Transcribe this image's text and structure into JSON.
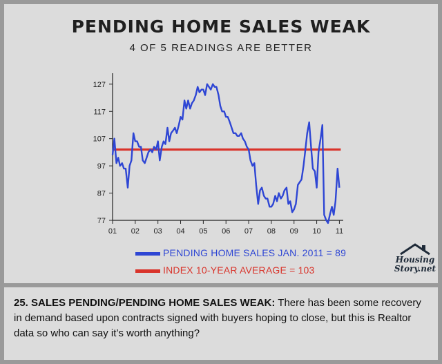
{
  "title": "PENDING HOME SALES WEAK",
  "subtitle": "4 OF 5 READINGS ARE BETTER",
  "legend": [
    {
      "label": "PENDING HOME SALES JAN. 2011 = 89",
      "color": "#2e46d4"
    },
    {
      "label": "INDEX 10-YEAR AVERAGE = 103",
      "color": "#d9342b"
    }
  ],
  "logo": {
    "line1": "Housing",
    "line2": "Story.net"
  },
  "caption": {
    "lead": "25. SALES PENDING/PENDING HOME SALES WEAK:",
    "text": " There has been some recovery in demand based upon contracts signed with buyers hoping to close, but this is Realtor data so who can say it’s worth anything?"
  },
  "colors": {
    "line": "#2e46d4",
    "average": "#d9342b",
    "background": "#dcdcdc"
  },
  "chart_data": {
    "type": "line",
    "title": "PENDING HOME SALES WEAK",
    "subtitle": "4 OF 5 READINGS ARE BETTER",
    "x_ticks": [
      "01",
      "02",
      "03",
      "04",
      "05",
      "06",
      "07",
      "08",
      "09",
      "10",
      "11"
    ],
    "y_ticks": [
      77,
      87,
      97,
      107,
      117,
      127
    ],
    "xlim": [
      2001.0,
      2011.17
    ],
    "ylim": [
      77,
      130
    ],
    "grid": false,
    "legend_position": "bottom",
    "series": [
      {
        "name": "PENDING HOME SALES JAN. 2011 = 89",
        "x": [
          2001.0,
          2001.08,
          2001.17,
          2001.25,
          2001.33,
          2001.42,
          2001.5,
          2001.58,
          2001.67,
          2001.75,
          2001.83,
          2001.92,
          2002.0,
          2002.08,
          2002.17,
          2002.25,
          2002.33,
          2002.42,
          2002.5,
          2002.58,
          2002.67,
          2002.75,
          2002.83,
          2002.92,
          2003.0,
          2003.08,
          2003.17,
          2003.25,
          2003.33,
          2003.42,
          2003.5,
          2003.58,
          2003.67,
          2003.75,
          2003.83,
          2003.92,
          2004.0,
          2004.08,
          2004.17,
          2004.25,
          2004.33,
          2004.42,
          2004.5,
          2004.58,
          2004.67,
          2004.75,
          2004.83,
          2004.92,
          2005.0,
          2005.08,
          2005.17,
          2005.25,
          2005.33,
          2005.42,
          2005.5,
          2005.58,
          2005.67,
          2005.75,
          2005.83,
          2005.92,
          2006.0,
          2006.08,
          2006.17,
          2006.25,
          2006.33,
          2006.42,
          2006.5,
          2006.58,
          2006.67,
          2006.75,
          2006.83,
          2006.92,
          2007.0,
          2007.08,
          2007.17,
          2007.25,
          2007.33,
          2007.42,
          2007.5,
          2007.58,
          2007.67,
          2007.75,
          2007.83,
          2007.92,
          2008.0,
          2008.08,
          2008.17,
          2008.25,
          2008.33,
          2008.42,
          2008.5,
          2008.58,
          2008.67,
          2008.75,
          2008.83,
          2008.92,
          2009.0,
          2009.08,
          2009.17,
          2009.25,
          2009.33,
          2009.42,
          2009.5,
          2009.58,
          2009.67,
          2009.75,
          2009.83,
          2009.92,
          2010.0,
          2010.08,
          2010.17,
          2010.25,
          2010.33,
          2010.42,
          2010.5,
          2010.58,
          2010.67,
          2010.75,
          2010.83,
          2010.92,
          2011.0
        ],
        "values": [
          101,
          107,
          98,
          100,
          97,
          98,
          96,
          96,
          89,
          97,
          99,
          109,
          106,
          106,
          104,
          104,
          99,
          98,
          100,
          102,
          103,
          102,
          104,
          103,
          106,
          99,
          104,
          106,
          105,
          111,
          106,
          109,
          110,
          111,
          109,
          112,
          115,
          114,
          121,
          118,
          121,
          118,
          120,
          121,
          123,
          126,
          124,
          125,
          125,
          123,
          127,
          126,
          125,
          127,
          126,
          126,
          123,
          119,
          117,
          117,
          115,
          115,
          113,
          111,
          109,
          109,
          108,
          108,
          109,
          107,
          106,
          104,
          103,
          99,
          97,
          98,
          90,
          83,
          88,
          89,
          86,
          85,
          85,
          82,
          82,
          83,
          86,
          84,
          87,
          85,
          86,
          88,
          89,
          83,
          84,
          80,
          81,
          83,
          90,
          91,
          92,
          97,
          103,
          109,
          113,
          104,
          96,
          95,
          89,
          102,
          107,
          112,
          79,
          77,
          76,
          79,
          82,
          79,
          84,
          96,
          89
        ]
      },
      {
        "name": "INDEX 10-YEAR AVERAGE = 103",
        "x": [
          2001.0,
          2011.0
        ],
        "values": [
          103,
          103
        ]
      }
    ]
  }
}
